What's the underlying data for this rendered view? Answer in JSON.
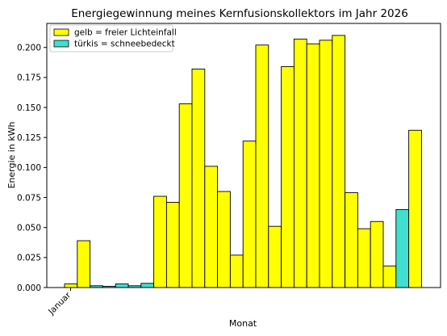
{
  "chart_data": {
    "type": "bar",
    "title": "Energiegewinnung meines Kernfusionskollektors im Jahr 2026",
    "xlabel": "Monat",
    "ylabel": "Energie in kWh",
    "x_tick_label": "Januar",
    "ylim": [
      0,
      0.22
    ],
    "y_ticks": [
      "0.000",
      "0.025",
      "0.050",
      "0.075",
      "0.100",
      "0.125",
      "0.150",
      "0.175",
      "0.200"
    ],
    "y_tick_values": [
      0,
      0.025,
      0.05,
      0.075,
      0.1,
      0.125,
      0.15,
      0.175,
      0.2
    ],
    "grid": false,
    "legend_position": "top-left",
    "legend": [
      {
        "label": "gelb = freier Lichteinfall",
        "color": "#ffff00"
      },
      {
        "label": "türkis = schneebedeckt",
        "color": "#40e0d0"
      }
    ],
    "values": [
      0.003,
      0.039,
      0.0015,
      0.001,
      0.003,
      0.0015,
      0.0035,
      0.076,
      0.071,
      0.153,
      0.182,
      0.101,
      0.08,
      0.027,
      0.122,
      0.202,
      0.051,
      0.184,
      0.207,
      0.203,
      0.206,
      0.21,
      0.079,
      0.049,
      0.055,
      0.018,
      0.065,
      0.131
    ],
    "bar_colors": [
      "#ffff00",
      "#ffff00",
      "#40e0d0",
      "#40e0d0",
      "#40e0d0",
      "#40e0d0",
      "#40e0d0",
      "#ffff00",
      "#ffff00",
      "#ffff00",
      "#ffff00",
      "#ffff00",
      "#ffff00",
      "#ffff00",
      "#ffff00",
      "#ffff00",
      "#ffff00",
      "#ffff00",
      "#ffff00",
      "#ffff00",
      "#ffff00",
      "#ffff00",
      "#ffff00",
      "#ffff00",
      "#ffff00",
      "#ffff00",
      "#40e0d0",
      "#ffff00"
    ]
  }
}
